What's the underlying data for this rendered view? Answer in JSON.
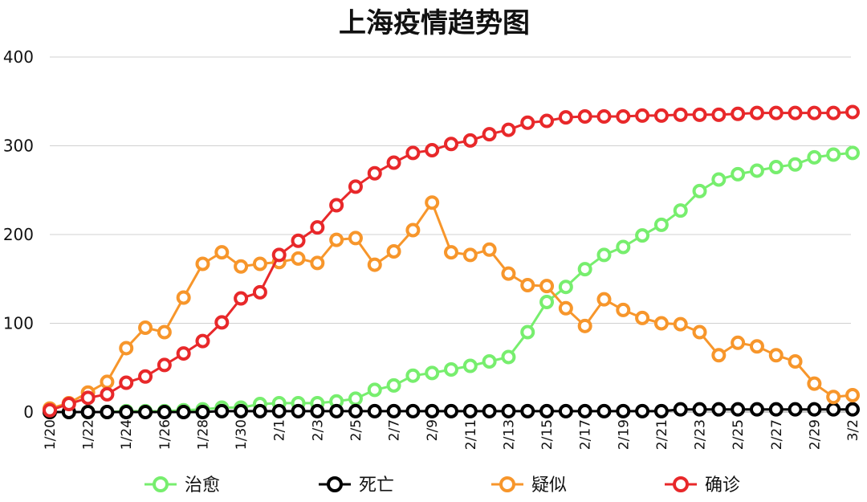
{
  "chart_data": {
    "type": "line",
    "title": "上海疫情趋势图",
    "xlabel": "",
    "ylabel": "",
    "ylim": [
      0,
      400
    ],
    "yticks": [
      0,
      100,
      200,
      300,
      400
    ],
    "grid": true,
    "legend_position": "bottom",
    "x": [
      "1/20",
      "1/21",
      "1/22",
      "1/23",
      "1/24",
      "1/25",
      "1/26",
      "1/27",
      "1/28",
      "1/29",
      "1/30",
      "1/31",
      "2/1",
      "2/2",
      "2/3",
      "2/4",
      "2/5",
      "2/6",
      "2/7",
      "2/8",
      "2/9",
      "2/10",
      "2/11",
      "2/12",
      "2/13",
      "2/14",
      "2/15",
      "2/16",
      "2/17",
      "2/18",
      "2/19",
      "2/20",
      "2/21",
      "2/22",
      "2/23",
      "2/24",
      "2/25",
      "2/26",
      "2/27",
      "2/28",
      "2/29",
      "3/1",
      "3/2"
    ],
    "xtick_labels": [
      "1/20",
      "1/22",
      "1/24",
      "1/26",
      "1/28",
      "1/30",
      "2/1",
      "2/3",
      "2/5",
      "2/7",
      "2/9",
      "2/11",
      "2/13",
      "2/15",
      "2/17",
      "2/19",
      "2/21",
      "2/23",
      "2/25",
      "2/27",
      "2/29",
      "3/2"
    ],
    "series": [
      {
        "name": "治愈",
        "color": "#77ee6e",
        "values": [
          0,
          0,
          0,
          0,
          1,
          1,
          1,
          2,
          3,
          5,
          5,
          9,
          10,
          10,
          10,
          12,
          15,
          25,
          30,
          41,
          44,
          48,
          52,
          57,
          62,
          90,
          124,
          141,
          161,
          177,
          186,
          199,
          211,
          227,
          249,
          262,
          268,
          272,
          276,
          279,
          287,
          290,
          292
        ]
      },
      {
        "name": "死亡",
        "color": "#000000",
        "values": [
          0,
          0,
          0,
          0,
          0,
          0,
          0,
          0,
          0,
          1,
          1,
          1,
          1,
          1,
          1,
          1,
          1,
          1,
          1,
          1,
          1,
          1,
          1,
          1,
          1,
          1,
          1,
          1,
          1,
          1,
          1,
          1,
          1,
          3,
          3,
          3,
          3,
          3,
          3,
          3,
          3,
          3,
          3
        ]
      },
      {
        "name": "疑似",
        "color": "#f7962b",
        "values": [
          4,
          10,
          22,
          34,
          72,
          95,
          90,
          129,
          167,
          180,
          164,
          167,
          169,
          173,
          168,
          194,
          196,
          166,
          181,
          205,
          236,
          180,
          177,
          183,
          156,
          143,
          142,
          117,
          97,
          127,
          115,
          106,
          100,
          99,
          90,
          64,
          78,
          74,
          64,
          57,
          32,
          17,
          19
        ]
      },
      {
        "name": "确诊",
        "color": "#e8282a",
        "values": [
          2,
          9,
          16,
          20,
          33,
          40,
          53,
          66,
          80,
          101,
          128,
          135,
          177,
          193,
          208,
          233,
          254,
          269,
          281,
          292,
          295,
          302,
          306,
          313,
          318,
          326,
          328,
          332,
          333,
          333,
          333,
          334,
          334,
          335,
          335,
          335,
          336,
          337,
          337,
          337,
          337,
          337,
          338
        ]
      }
    ]
  }
}
